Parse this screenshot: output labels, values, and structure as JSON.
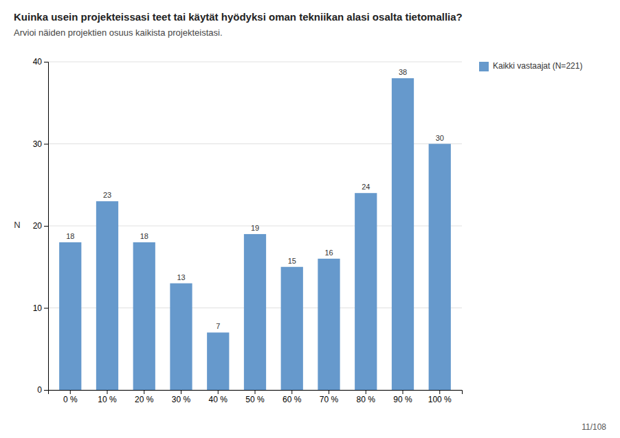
{
  "chart_data": {
    "type": "bar",
    "title": "Kuinka usein projekteissasi teet tai käytät hyödyksi oman tekniikan alasi osalta tietomallia?",
    "subtitle": "Arvioi näiden projektien osuus kaikista projekteistasi.",
    "y_label": "N",
    "categories": [
      "0 %",
      "10 %",
      "20 %",
      "30 %",
      "40 %",
      "50 %",
      "60 %",
      "70 %",
      "80 %",
      "90 %",
      "100 %"
    ],
    "series": [
      {
        "name": "Kaikki vastaajat (N=221)",
        "color": "#6699cc",
        "values": [
          18,
          23,
          18,
          13,
          7,
          19,
          15,
          16,
          24,
          38,
          30
        ]
      }
    ],
    "ylim": [
      0,
      40
    ],
    "yticks": [
      0,
      10,
      20,
      30,
      40
    ],
    "grid": true,
    "legend": "upper right",
    "data_labels": true,
    "annotations": [
      "11/108"
    ]
  }
}
